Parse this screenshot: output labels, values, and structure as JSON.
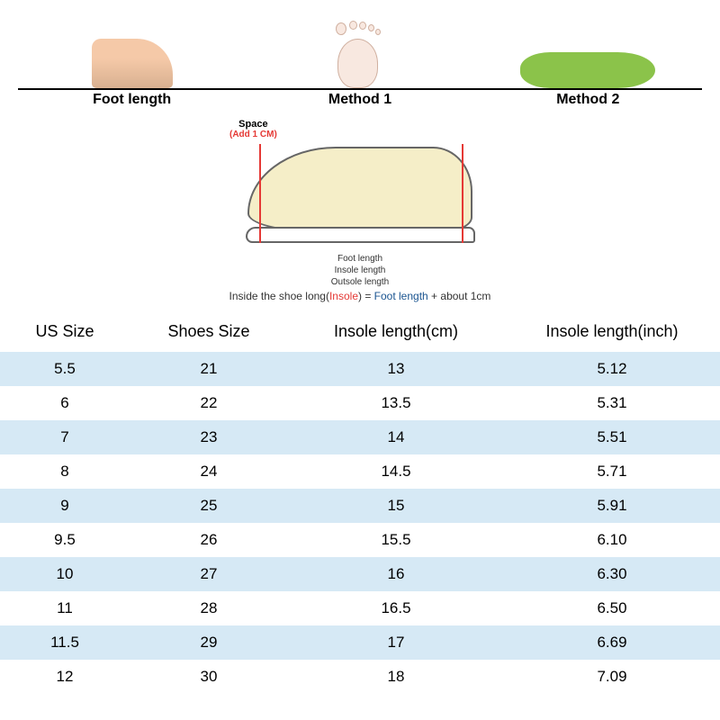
{
  "header": {
    "items": [
      {
        "label": "Foot length"
      },
      {
        "label": "Method 1"
      },
      {
        "label": "Method 2"
      }
    ]
  },
  "diagram": {
    "space_label": "Space",
    "space_add": "(Add 1 CM)",
    "line1": "Foot length",
    "line2": "Insole length",
    "line3": "Outsole length",
    "formula_prefix": "Inside the shoe long(",
    "formula_insole": "Insole",
    "formula_mid": ") = ",
    "formula_foot": "Foot length",
    "formula_suffix": " + about 1cm"
  },
  "table": {
    "columns": [
      "US Size",
      "Shoes Size",
      "Insole length(cm)",
      "Insole length(inch)"
    ],
    "rows": [
      [
        "5.5",
        "21",
        "13",
        "5.12"
      ],
      [
        "6",
        "22",
        "13.5",
        "5.31"
      ],
      [
        "7",
        "23",
        "14",
        "5.51"
      ],
      [
        "8",
        "24",
        "14.5",
        "5.71"
      ],
      [
        "9",
        "25",
        "15",
        "5.91"
      ],
      [
        "9.5",
        "26",
        "15.5",
        "6.10"
      ],
      [
        "10",
        "27",
        "16",
        "6.30"
      ],
      [
        "11",
        "28",
        "16.5",
        "6.50"
      ],
      [
        "11.5",
        "29",
        "17",
        "6.69"
      ],
      [
        "12",
        "30",
        "18",
        "7.09"
      ]
    ],
    "stripe_color": "#d6e9f5",
    "header_fontsize": 18,
    "cell_fontsize": 17,
    "col_widths_pct": [
      18,
      22,
      30,
      30
    ]
  },
  "colors": {
    "background": "#ffffff",
    "stripe": "#d6e9f5",
    "text": "#000000",
    "red": "#e53935",
    "blue": "#1a5490",
    "insole_green": "#8bc34a",
    "shoe_fill": "#f5eec8"
  }
}
